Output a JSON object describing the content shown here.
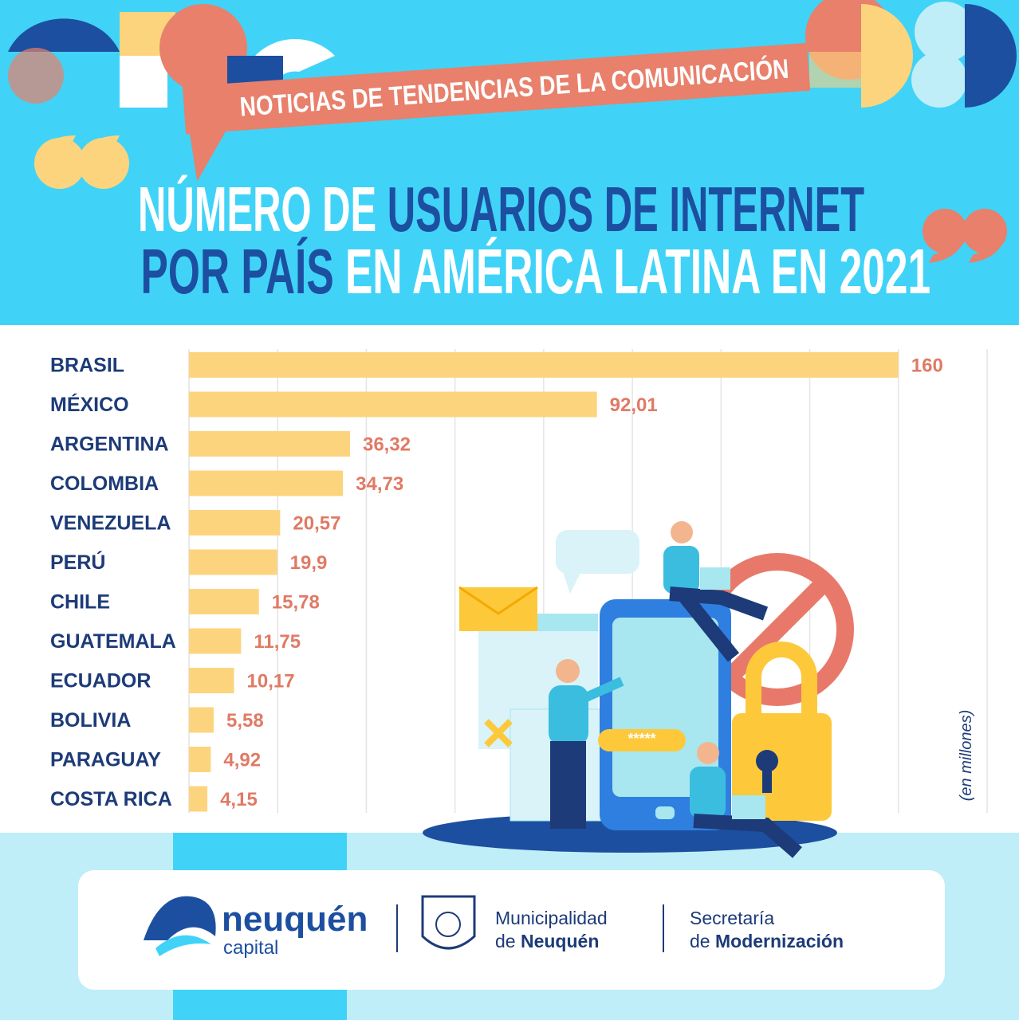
{
  "banner": "NOTICIAS DE TENDENCIAS DE LA COMUNICACIÓN",
  "chart_data": {
    "type": "bar",
    "orientation": "horizontal",
    "title_lines": [
      [
        "NÚMERO DE ",
        "USUARIOS DE INTERNET"
      ],
      [
        "POR PAÍS",
        " EN AMÉRICA LATINA EN 2021"
      ]
    ],
    "axis_label": "(en millones)",
    "categories": [
      "BRASIL",
      "MÉXICO",
      "ARGENTINA",
      "COLOMBIA",
      "VENEZUELA",
      "PERÚ",
      "CHILE",
      "GUATEMALA",
      "ECUADOR",
      "BOLIVIA",
      "PARAGUAY",
      "COSTA RICA"
    ],
    "values": [
      160,
      92.01,
      36.32,
      34.73,
      20.57,
      19.9,
      15.78,
      11.75,
      10.17,
      5.58,
      4.92,
      4.15
    ],
    "value_labels": [
      "160",
      "92,01",
      "36,32",
      "34,73",
      "20,57",
      "19,9",
      "15,78",
      "11,75",
      "10,17",
      "5,58",
      "4,92",
      "4,15"
    ],
    "color": "#fdd47e",
    "label_color": "#e07a65",
    "xlim": [
      0,
      180
    ],
    "xticks": [
      0,
      20,
      40,
      60,
      80,
      100,
      120,
      140,
      160,
      180
    ],
    "grid": true
  },
  "illustration": {
    "password_field": "*****"
  },
  "footer": {
    "brand": "neuquén",
    "brand_sub": "capital",
    "org1": {
      "line1": "Municipalidad",
      "line2": [
        "de ",
        "Neuquén"
      ]
    },
    "org2": {
      "line1": "Secretaría",
      "line2": [
        "de ",
        "Modernización"
      ]
    }
  }
}
